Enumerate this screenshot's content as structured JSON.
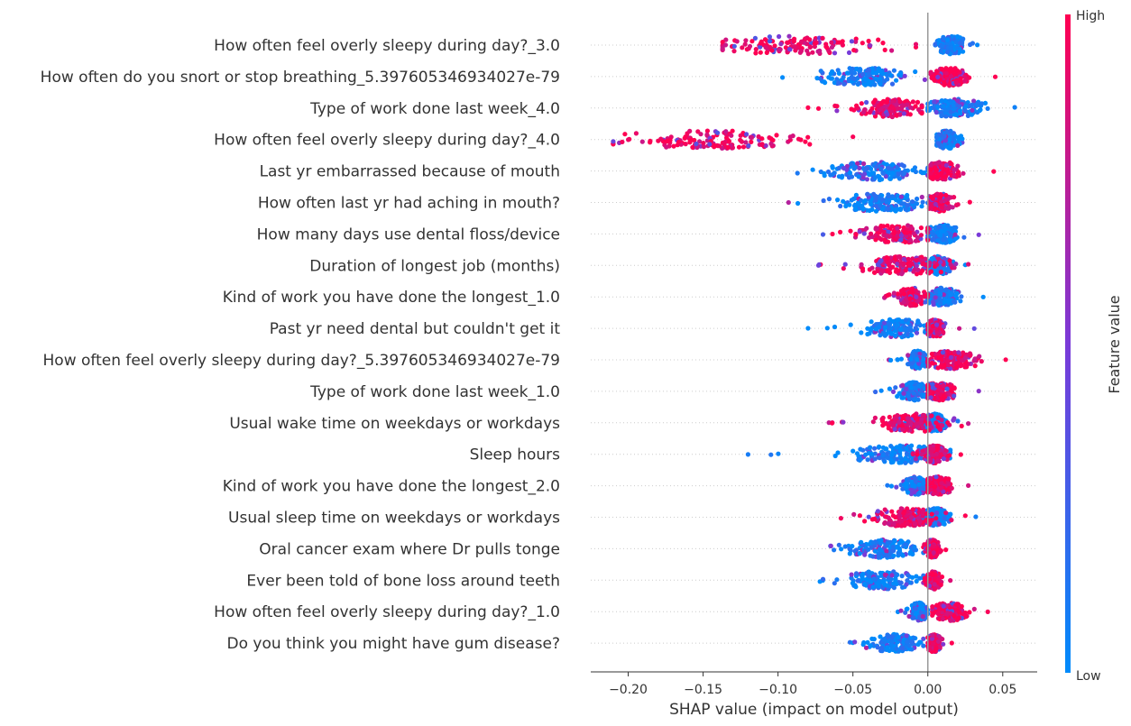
{
  "chart_data": {
    "type": "scatter",
    "subtype": "shap-beeswarm",
    "title": "",
    "xlabel": "SHAP value (impact on model output)",
    "ylabel": "",
    "xlim": [
      -0.225,
      0.073
    ],
    "xticks": [
      -0.2,
      -0.15,
      -0.1,
      -0.05,
      0.0,
      0.05
    ],
    "xtick_labels": [
      "−0.20",
      "−0.15",
      "−0.10",
      "−0.05",
      "0.00",
      "0.05"
    ],
    "grid": false,
    "colorbar": {
      "label": "Feature value",
      "high_label": "High",
      "low_label": "Low",
      "high_color": "#ff0052",
      "low_color": "#008bfb"
    },
    "features": [
      {
        "name": "How often feel overly sleepy during day?_3.0",
        "high": {
          "min": -0.137,
          "max": -0.008,
          "center": -0.085,
          "spread": 0.04
        },
        "low": {
          "min": 0.005,
          "max": 0.033,
          "center": 0.016,
          "spread": 0.007
        }
      },
      {
        "name": "How often do you snort or stop breathing_5.397605346934027e-79",
        "high": {
          "min": 0.002,
          "max": 0.045,
          "center": 0.015,
          "spread": 0.008
        },
        "low": {
          "min": -0.097,
          "max": -0.002,
          "center": -0.042,
          "spread": 0.02
        }
      },
      {
        "name": "Type of work done last week_4.0",
        "high": {
          "min": -0.08,
          "max": -0.004,
          "center": -0.025,
          "spread": 0.015
        },
        "low": {
          "min": 0.0,
          "max": 0.058,
          "center": 0.018,
          "spread": 0.012
        }
      },
      {
        "name": "How often feel overly sleepy during day?_4.0",
        "high": {
          "min": -0.21,
          "max": -0.05,
          "center": -0.14,
          "spread": 0.04
        },
        "low": {
          "min": 0.006,
          "max": 0.023,
          "center": 0.013,
          "spread": 0.005
        }
      },
      {
        "name": "Last yr embarrassed because of mouth",
        "high": {
          "min": 0.002,
          "max": 0.044,
          "center": 0.01,
          "spread": 0.008
        },
        "low": {
          "min": -0.087,
          "max": 0.0,
          "center": -0.035,
          "spread": 0.02
        }
      },
      {
        "name": "How often last yr had aching in mouth?",
        "high": {
          "min": 0.001,
          "max": 0.028,
          "center": 0.008,
          "spread": 0.006
        },
        "low": {
          "min": -0.093,
          "max": 0.0,
          "center": -0.03,
          "spread": 0.018
        }
      },
      {
        "name": "How many days use dental floss/device",
        "high": {
          "min": -0.07,
          "max": 0.0,
          "center": -0.02,
          "spread": 0.015
        },
        "low": {
          "min": 0.0,
          "max": 0.034,
          "center": 0.01,
          "spread": 0.007
        }
      },
      {
        "name": "Duration of longest job (months)",
        "high": {
          "min": -0.073,
          "max": 0.027,
          "center": -0.015,
          "spread": 0.02
        },
        "low": {
          "min": -0.02,
          "max": 0.025,
          "center": 0.007,
          "spread": 0.006
        }
      },
      {
        "name": "Kind of work you have done the longest_1.0",
        "high": {
          "min": -0.029,
          "max": 0.0,
          "center": -0.011,
          "spread": 0.006
        },
        "low": {
          "min": 0.0,
          "max": 0.037,
          "center": 0.01,
          "spread": 0.007
        }
      },
      {
        "name": "Past yr need dental but couldn't get it",
        "high": {
          "min": 0.0,
          "max": 0.021,
          "center": 0.005,
          "spread": 0.004
        },
        "low": {
          "min": -0.08,
          "max": 0.031,
          "center": -0.02,
          "spread": 0.015
        }
      },
      {
        "name": "How often feel overly sleepy during day?_5.397605346934027e-79",
        "high": {
          "min": 0.0,
          "max": 0.052,
          "center": 0.015,
          "spread": 0.012
        },
        "low": {
          "min": -0.026,
          "max": 0.0,
          "center": -0.007,
          "spread": 0.004
        }
      },
      {
        "name": "Type of work done last week_1.0",
        "high": {
          "min": 0.0,
          "max": 0.034,
          "center": 0.008,
          "spread": 0.007
        },
        "low": {
          "min": -0.035,
          "max": 0.0,
          "center": -0.01,
          "spread": 0.007
        }
      },
      {
        "name": "Usual wake time on weekdays or workdays",
        "high": {
          "min": -0.066,
          "max": 0.027,
          "center": -0.01,
          "spread": 0.015
        },
        "low": {
          "min": -0.02,
          "max": 0.02,
          "center": 0.004,
          "spread": 0.006
        }
      },
      {
        "name": "Sleep hours",
        "high": {
          "min": -0.01,
          "max": 0.022,
          "center": 0.005,
          "spread": 0.005
        },
        "low": {
          "min": -0.12,
          "max": 0.015,
          "center": -0.02,
          "spread": 0.02
        }
      },
      {
        "name": "Kind of work you have done the longest_2.0",
        "high": {
          "min": 0.0,
          "max": 0.027,
          "center": 0.007,
          "spread": 0.006
        },
        "low": {
          "min": -0.027,
          "max": 0.0,
          "center": -0.008,
          "spread": 0.005
        }
      },
      {
        "name": "Usual sleep time on weekdays or workdays",
        "high": {
          "min": -0.058,
          "max": 0.025,
          "center": -0.015,
          "spread": 0.015
        },
        "low": {
          "min": -0.01,
          "max": 0.032,
          "center": 0.005,
          "spread": 0.006
        }
      },
      {
        "name": "Oral cancer exam where Dr pulls tonge",
        "high": {
          "min": -0.003,
          "max": 0.012,
          "center": 0.003,
          "spread": 0.003
        },
        "low": {
          "min": -0.065,
          "max": -0.003,
          "center": -0.03,
          "spread": 0.015
        }
      },
      {
        "name": "Ever been told of bone loss around teeth",
        "high": {
          "min": -0.002,
          "max": 0.015,
          "center": 0.004,
          "spread": 0.003
        },
        "low": {
          "min": -0.072,
          "max": -0.003,
          "center": -0.03,
          "spread": 0.016
        }
      },
      {
        "name": "How often feel overly sleepy during day?_1.0",
        "high": {
          "min": 0.003,
          "max": 0.04,
          "center": 0.015,
          "spread": 0.008
        },
        "low": {
          "min": -0.02,
          "max": 0.0,
          "center": -0.006,
          "spread": 0.004
        }
      },
      {
        "name": "Do you think you might have gum disease?",
        "high": {
          "min": 0.0,
          "max": 0.016,
          "center": 0.004,
          "spread": 0.003
        },
        "low": {
          "min": -0.052,
          "max": -0.003,
          "center": -0.022,
          "spread": 0.012
        }
      }
    ]
  }
}
